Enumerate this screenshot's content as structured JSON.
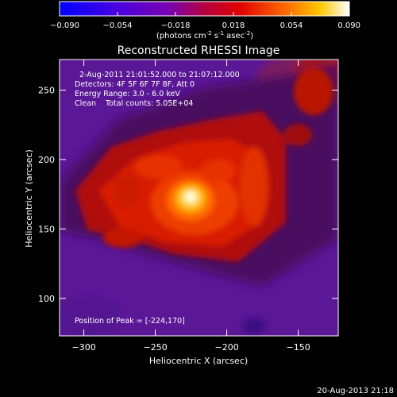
{
  "colorbar": {
    "ticks": [
      "-0.090",
      "-0.054",
      "-0.018",
      "0.018",
      "0.054",
      "0.090"
    ],
    "units_label": "(photons cm",
    "units_exp1": "-2",
    "units_mid": " s",
    "units_exp2": "-1",
    "units_tail": " asec",
    "units_exp3": "-2",
    "units_close": ")"
  },
  "chart_data": {
    "type": "heatmap",
    "title": "Reconstructed RHESSI Image",
    "xlabel": "Heliocentric X (arcsec)",
    "ylabel": "Heliocentric Y (arcsec)",
    "xlim": [
      -317,
      -122
    ],
    "ylim": [
      73,
      272
    ],
    "xticks": [
      -300,
      -250,
      -200,
      -150
    ],
    "yticks": [
      100,
      150,
      200,
      250
    ],
    "clim": [
      -0.09,
      0.09
    ],
    "peak": [
      -224,
      170
    ],
    "annotations": [
      "2-Aug-2011 21:01:52.000 to 21:07:12.000",
      "Detectors: 4F 5F 6F 7F 8F, Att 0",
      "Energy Range: 3.0 - 6.0 keV",
      "Clean    Total counts: 5.05E+04"
    ],
    "peak_label": "Position of Peak = [-224,170]"
  },
  "footer": {
    "timestamp": "20-Aug-2013 21:18"
  }
}
